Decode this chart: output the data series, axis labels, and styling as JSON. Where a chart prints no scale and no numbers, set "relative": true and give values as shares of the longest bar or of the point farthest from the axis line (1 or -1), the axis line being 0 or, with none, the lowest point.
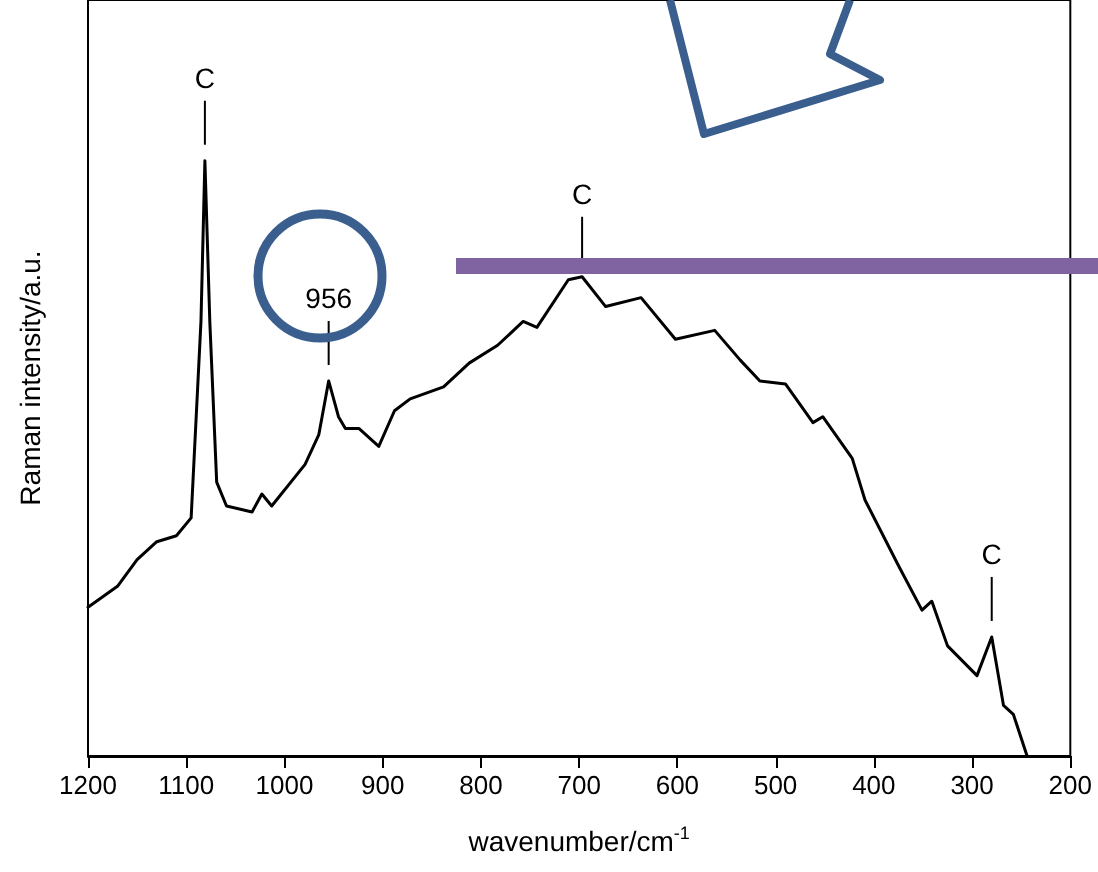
{
  "chart_data": {
    "type": "line",
    "relative": true,
    "xlabel": "wavenumber/cm$^{-1}$",
    "ylabel": "Raman intensity/a.u.",
    "xlim": [
      1200,
      200
    ],
    "xticks": [
      1200,
      1100,
      1000,
      900,
      800,
      700,
      600,
      500,
      400,
      300,
      200
    ],
    "grid": false,
    "marker": "none",
    "annotations": [
      {
        "text": "C",
        "x": 1081,
        "y": 1.0
      },
      {
        "text": "956",
        "x": 955,
        "y": 0.63
      },
      {
        "text": "C",
        "x": 697,
        "y": 0.805
      },
      {
        "text": "C",
        "x": 280,
        "y": 0.2
      }
    ],
    "series": [
      {
        "color": "#000000",
        "x": [
          1200,
          1170,
          1150,
          1130,
          1110,
          1095,
          1085,
          1081,
          1076,
          1069,
          1059,
          1033,
          1023,
          1013,
          979,
          965,
          955,
          945,
          938,
          924,
          904,
          888,
          872,
          838,
          812,
          783,
          757,
          743,
          711,
          697,
          673,
          637,
          602,
          562,
          536,
          516,
          490,
          462,
          452,
          422,
          409,
          375,
          351,
          341,
          325,
          295,
          280,
          268,
          258,
          244
        ],
        "values": [
          0.25,
          0.285,
          0.33,
          0.36,
          0.37,
          0.4,
          0.73,
          1.0,
          0.73,
          0.46,
          0.42,
          0.41,
          0.44,
          0.42,
          0.49,
          0.54,
          0.63,
          0.57,
          0.55,
          0.55,
          0.52,
          0.58,
          0.6,
          0.62,
          0.66,
          0.69,
          0.73,
          0.72,
          0.8,
          0.805,
          0.755,
          0.77,
          0.7,
          0.715,
          0.665,
          0.63,
          0.625,
          0.56,
          0.57,
          0.5,
          0.43,
          0.32,
          0.245,
          0.26,
          0.185,
          0.135,
          0.2,
          0.085,
          0.07,
          0.0
        ]
      }
    ]
  }
}
